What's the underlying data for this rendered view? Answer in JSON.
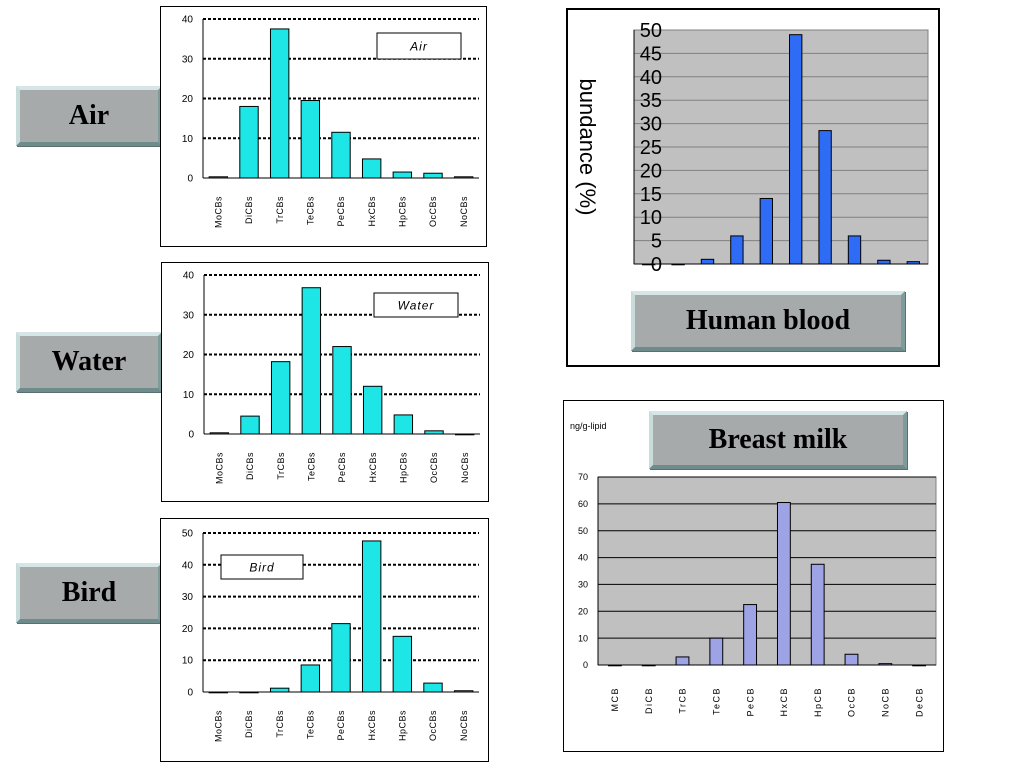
{
  "labels": {
    "air": "Air",
    "water": "Water",
    "bird": "Bird",
    "human_blood": "Human blood",
    "breast_milk": "Breast milk"
  },
  "chart_data": [
    {
      "id": "air",
      "type": "bar",
      "title": "",
      "legend_box_text": "Air",
      "categories": [
        "MoCBs",
        "DiCBs",
        "TrCBs",
        "TeCBs",
        "PeCBs",
        "HxCBs",
        "HpCBs",
        "OcCBs",
        "NoCBs"
      ],
      "values": [
        0.3,
        18,
        37.5,
        19.5,
        11.5,
        4.8,
        1.5,
        1.2,
        0.3
      ],
      "ylim": [
        0,
        40
      ],
      "yticks": [
        0,
        10,
        20,
        30,
        40
      ],
      "grid": "dotted",
      "bar_color": "#1ee6e6",
      "xlabel": "",
      "ylabel": ""
    },
    {
      "id": "water",
      "type": "bar",
      "title": "",
      "legend_box_text": "Water",
      "categories": [
        "MoCBs",
        "DiCBs",
        "TrCBs",
        "TeCBs",
        "PeCBs",
        "HxCBs",
        "HpCBs",
        "OcCBs",
        "NoCBs"
      ],
      "values": [
        0.3,
        4.5,
        18.2,
        36.8,
        22,
        12,
        4.8,
        0.8,
        0
      ],
      "ylim": [
        0,
        40
      ],
      "yticks": [
        0,
        10,
        20,
        30,
        40
      ],
      "grid": "dotted",
      "bar_color": "#1ee6e6",
      "xlabel": "",
      "ylabel": ""
    },
    {
      "id": "bird",
      "type": "bar",
      "title": "",
      "legend_box_text": "Bird",
      "categories": [
        "MoCBs",
        "DiCBs",
        "TrCBs",
        "TeCBs",
        "PeCBs",
        "HxCBs",
        "HpCBs",
        "OcCBs",
        "NoCBs"
      ],
      "values": [
        0,
        0,
        1.2,
        8.5,
        21.5,
        47.5,
        17.5,
        2.8,
        0.4
      ],
      "ylim": [
        0,
        50
      ],
      "yticks": [
        0,
        10,
        20,
        30,
        40,
        50
      ],
      "grid": "dotted",
      "bar_color": "#1ee6e6",
      "xlabel": "",
      "ylabel": ""
    },
    {
      "id": "human_blood",
      "type": "bar",
      "title": "",
      "ylabel": "bundance (%)",
      "categories": [
        "",
        "",
        "",
        "",
        "",
        "",
        "",
        "",
        "",
        ""
      ],
      "values": [
        0,
        0,
        1,
        6,
        14,
        49,
        28.5,
        6,
        0.8,
        0.5
      ],
      "ylim": [
        0,
        50
      ],
      "yticks": [
        0,
        5,
        10,
        15,
        20,
        25,
        30,
        35,
        40,
        45,
        50
      ],
      "grid": "solid",
      "bar_color": "#2f6cf6",
      "xlabel": ""
    },
    {
      "id": "breast_milk",
      "type": "bar",
      "title": "",
      "unit_label": "ng/g-lipid",
      "categories": [
        "MCB",
        "DiCB",
        "TrCB",
        "TeCB",
        "PeCB",
        "HxCB",
        "HpCB",
        "OcCB",
        "NoCB",
        "DeCB"
      ],
      "values": [
        0,
        0,
        3,
        10,
        22.5,
        60.5,
        37.5,
        4,
        0.5,
        0
      ],
      "ylim": [
        0,
        70
      ],
      "yticks": [
        0,
        10,
        20,
        30,
        40,
        50,
        60,
        70
      ],
      "grid": "solid",
      "bar_color": "#9ea3e6",
      "xlabel": "",
      "ylabel": ""
    }
  ]
}
